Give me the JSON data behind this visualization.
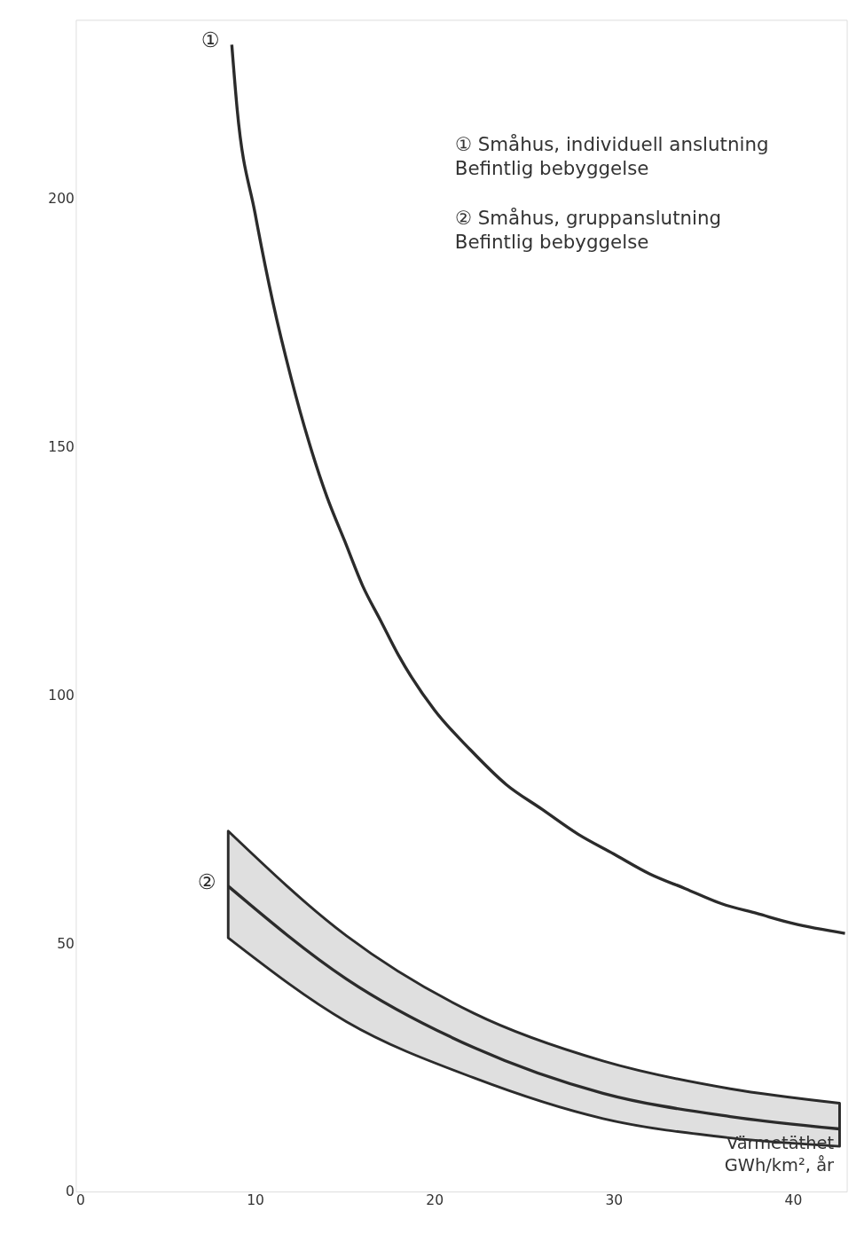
{
  "chart_data": {
    "type": "line",
    "xlabel": "Värmetäthet\nGWh/km², år",
    "xlim": [
      0,
      43
    ],
    "ylim": [
      0,
      236
    ],
    "xticks": [
      0,
      10,
      20,
      30,
      40
    ],
    "yticks": [
      0,
      50,
      100,
      150,
      200
    ],
    "grid": false,
    "marker": "none",
    "line_style": "solid",
    "annotations": [
      "① Småhus, individuell anslutning\nBefintlig bebyggelse",
      "② Småhus, gruppanslutning\nBefintlig bebyggelse"
    ],
    "series": [
      {
        "name": "①",
        "color": "#2b2b2b",
        "x": [
          8.7,
          9,
          10,
          11,
          12,
          13,
          14,
          15,
          16,
          17,
          18,
          20,
          22,
          24,
          26,
          28,
          30,
          32,
          34,
          36,
          38,
          40,
          42.9
        ],
        "values": [
          231,
          218,
          197,
          179,
          164,
          151,
          140,
          131,
          122,
          115,
          108,
          97,
          89,
          82,
          77,
          72,
          68,
          64,
          61,
          58,
          56,
          54,
          52
        ]
      },
      {
        "name": "②",
        "color": "#2b2b2b",
        "x": [
          8.5,
          15.1,
          22.2,
          29.4,
          36.5,
          42.6
        ],
        "values": [
          61.5,
          42.8,
          29.0,
          19.8,
          15.1,
          12.6
        ],
        "lower": [
          51.1,
          34.2,
          22.9,
          14.7,
          10.8,
          9.1
        ],
        "upper": [
          72.6,
          51.5,
          35.9,
          26.3,
          20.7,
          17.8
        ]
      }
    ]
  }
}
